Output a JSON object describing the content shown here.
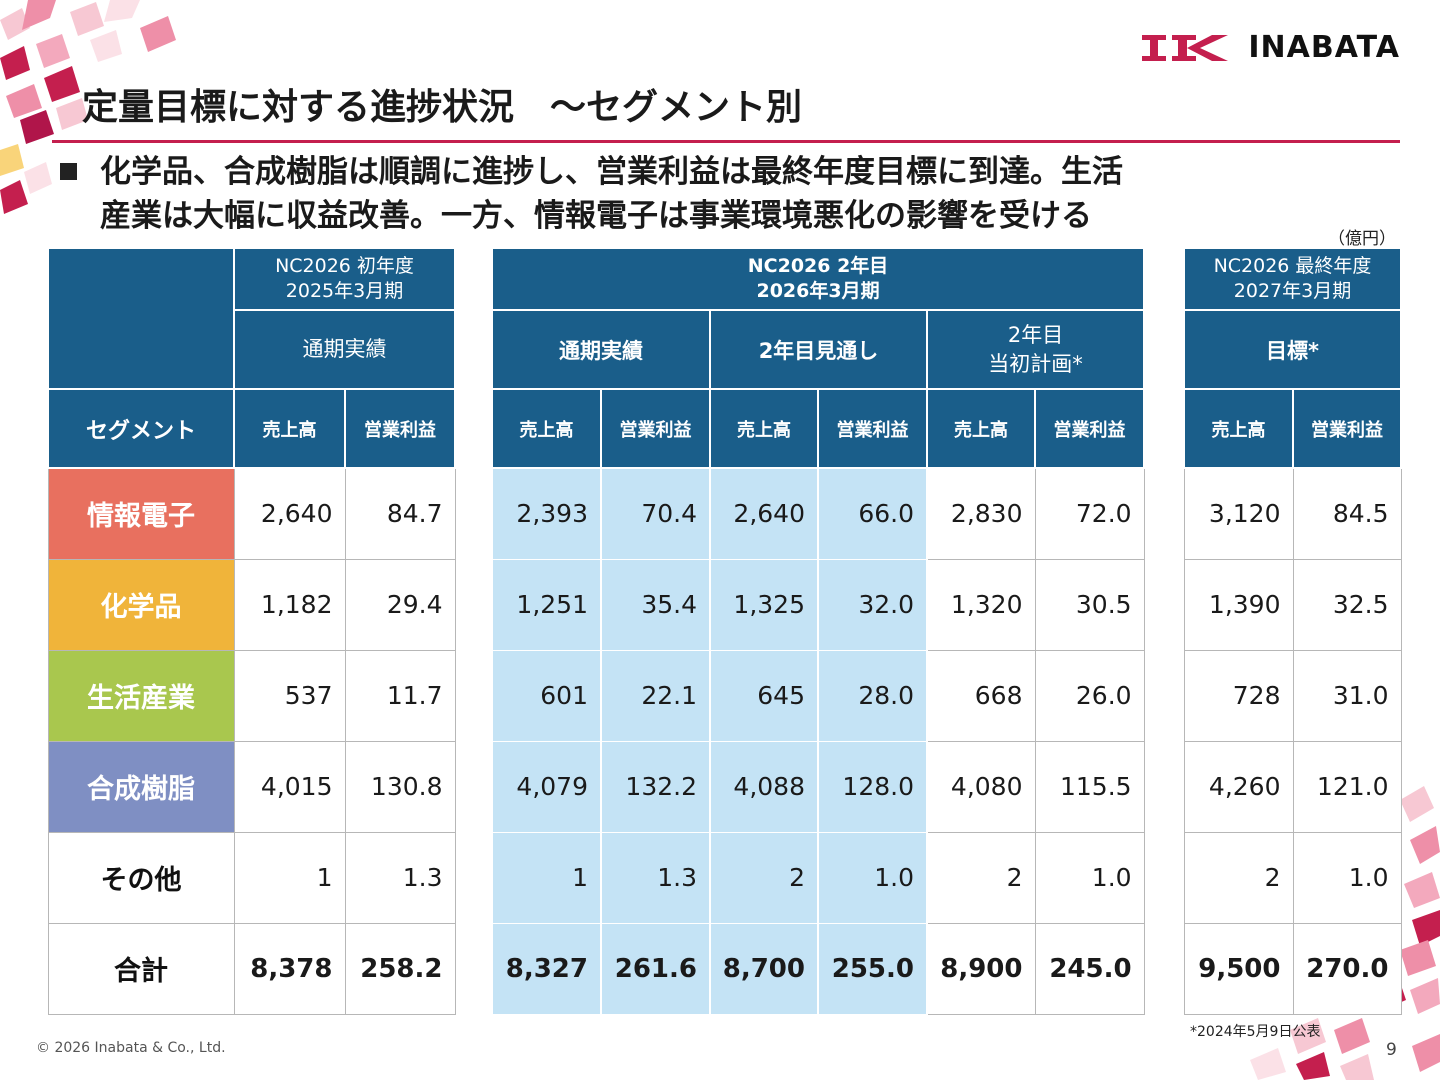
{
  "brand": {
    "name": "INABATA",
    "mark": "IK",
    "color": "#c41f4e"
  },
  "title": "定量目標に対する進捗状況　～セグメント別",
  "summary": {
    "line1": "化学品、合成樹脂は順調に進捗し、営業利益は最終年度目標に到達。生活",
    "line2": "産業は大幅に収益改善。一方、情報電子は事業環境悪化の影響を受ける"
  },
  "unit": "（億円）",
  "table": {
    "segment_header": "セグメント",
    "g1": {
      "line1": "NC2026 初年度",
      "line2": "2025年3月期",
      "sub": "通期実績"
    },
    "g2": {
      "line1": "NC2026 2年目",
      "line2": "2026年3月期",
      "sub_a": "通期実績",
      "sub_b": "2年目見通し",
      "sub_c1": "2年目",
      "sub_c2": "当初計画*"
    },
    "g3": {
      "line1": "NC2026 最終年度",
      "line2": "2027年3月期",
      "sub": "目標*"
    },
    "col_sales": "売上高",
    "col_op": "営業利益",
    "rows": [
      {
        "name": "情報電子",
        "color": "#e8705f",
        "v": [
          "2,640",
          "84.7",
          "2,393",
          "70.4",
          "2,640",
          "66.0",
          "2,830",
          "72.0",
          "3,120",
          "84.5"
        ]
      },
      {
        "name": "化学品",
        "color": "#f0b43a",
        "v": [
          "1,182",
          "29.4",
          "1,251",
          "35.4",
          "1,325",
          "32.0",
          "1,320",
          "30.5",
          "1,390",
          "32.5"
        ]
      },
      {
        "name": "生活産業",
        "color": "#a9c74e",
        "v": [
          "537",
          "11.7",
          "601",
          "22.1",
          "645",
          "28.0",
          "668",
          "26.0",
          "728",
          "31.0"
        ]
      },
      {
        "name": "合成樹脂",
        "color": "#7f8fc3",
        "v": [
          "4,015",
          "130.8",
          "4,079",
          "132.2",
          "4,088",
          "128.0",
          "4,080",
          "115.5",
          "4,260",
          "121.0"
        ]
      },
      {
        "name": "その他",
        "color": "#ffffff",
        "v": [
          "1",
          "1.3",
          "1",
          "1.3",
          "2",
          "1.0",
          "2",
          "1.0",
          "2",
          "1.0"
        ]
      },
      {
        "name": "合計",
        "color": "#ffffff",
        "v": [
          "8,378",
          "258.2",
          "8,327",
          "261.6",
          "8,700",
          "255.0",
          "8,900",
          "245.0",
          "9,500",
          "270.0"
        ]
      }
    ]
  },
  "footnote": "*2024年5月9日公表",
  "copyright": "© 2026 Inabata & Co., Ltd.",
  "page_number": "9"
}
